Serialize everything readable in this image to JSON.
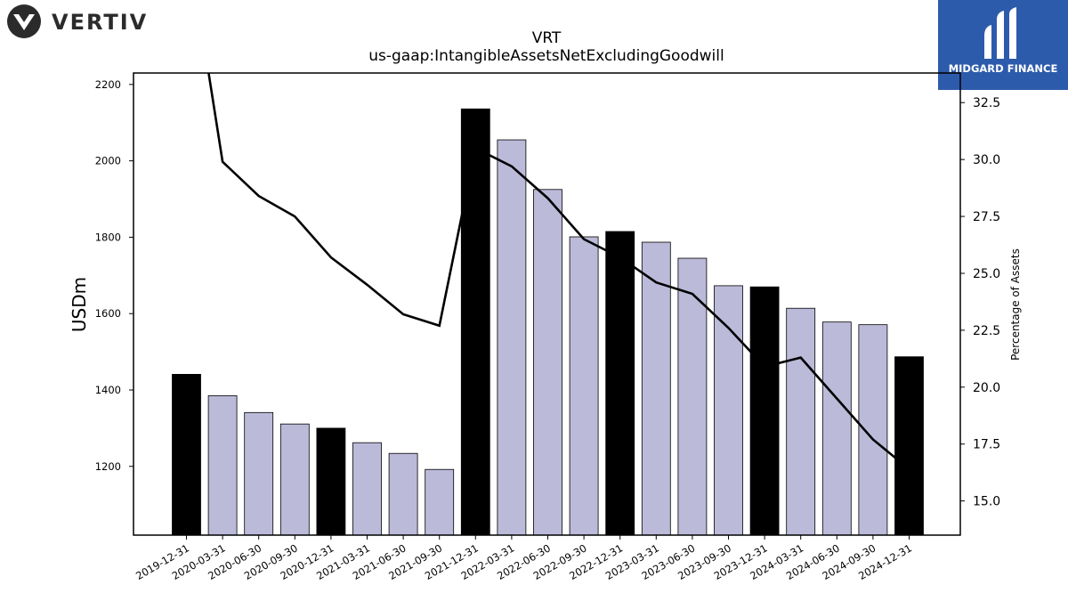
{
  "brands": {
    "vertiv": {
      "name": "VERTIV",
      "color": "#2b2b2b"
    },
    "midgard": {
      "name": "MIDGARD FINANCE",
      "bg": "#2d5bab"
    }
  },
  "chart_data": {
    "type": "bar",
    "title": "VRT",
    "subtitle": "us-gaap:IntangibleAssetsNetExcludingGoodwill",
    "ylabel": "USDm",
    "y2label": "Percentage of Assets",
    "ylim": [
      1020,
      2230
    ],
    "y2lim": [
      13.5,
      33.8
    ],
    "yticks": [
      1200,
      1400,
      1600,
      1800,
      2000,
      2200
    ],
    "y2ticks": [
      "15.0",
      "17.5",
      "20.0",
      "22.5",
      "25.0",
      "27.5",
      "30.0",
      "32.5"
    ],
    "categories": [
      "2019-12-31",
      "2020-03-31",
      "2020-06-30",
      "2020-09-30",
      "2020-12-31",
      "2021-03-31",
      "2021-06-30",
      "2021-09-30",
      "2021-12-31",
      "2022-03-31",
      "2022-06-30",
      "2022-09-30",
      "2022-12-31",
      "2023-03-31",
      "2023-06-30",
      "2023-09-30",
      "2023-12-31",
      "2024-03-31",
      "2024-06-30",
      "2024-09-30",
      "2024-12-31"
    ],
    "series": [
      {
        "kind": "bar",
        "values": [
          1441,
          1385,
          1341,
          1311,
          1300,
          1262,
          1234,
          1192,
          2136,
          2055,
          1925,
          1801,
          1815,
          1787,
          1745,
          1673,
          1670,
          1614,
          1578,
          1571,
          1487
        ],
        "fiscal_year_end": [
          true,
          false,
          false,
          false,
          true,
          false,
          false,
          false,
          true,
          false,
          false,
          false,
          true,
          false,
          false,
          false,
          true,
          false,
          false,
          false,
          true
        ],
        "colors": {
          "fiscal_year_end": "#000000",
          "quarter": "#bcbad9"
        }
      },
      {
        "kind": "line",
        "axis": "right",
        "values": [
          40.0,
          29.9,
          28.4,
          27.5,
          25.7,
          24.5,
          23.2,
          22.7,
          30.5,
          29.7,
          28.3,
          26.5,
          25.7,
          24.6,
          24.1,
          22.6,
          20.9,
          21.3,
          19.5,
          17.7,
          16.4
        ],
        "color": "#000000"
      }
    ]
  }
}
